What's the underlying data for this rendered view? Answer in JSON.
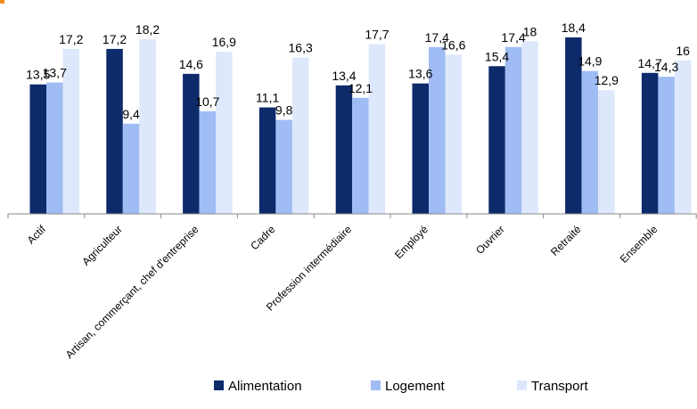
{
  "chart_data": {
    "type": "bar",
    "categories": [
      "Actif",
      "Agriculteur",
      "Artisan, commerçant, chef d'entreprise",
      "Cadre",
      "Profession intermédiaire",
      "Employé",
      "Ouvrier",
      "Retraité",
      "Ensemble"
    ],
    "series": [
      {
        "name": "Alimentation",
        "color": "#0d2a6b",
        "values": [
          13.5,
          17.2,
          14.6,
          11.1,
          13.4,
          13.6,
          15.4,
          18.4,
          14.7
        ],
        "labels": [
          "13,5",
          "17,2",
          "14,6",
          "11,1",
          "13,4",
          "13,6",
          "15,4",
          "18,4",
          "14,7"
        ]
      },
      {
        "name": "Logement",
        "color": "#9fbcf5",
        "values": [
          13.7,
          9.4,
          10.7,
          9.8,
          12.1,
          17.4,
          17.4,
          14.9,
          14.3
        ],
        "labels": [
          "13,7",
          "9,4",
          "10,7",
          "9,8",
          "12,1",
          "17,4",
          "17,4",
          "14,9",
          "14,3"
        ]
      },
      {
        "name": "Transport",
        "color": "#dde8fc",
        "values": [
          17.2,
          18.2,
          16.9,
          16.3,
          17.7,
          16.6,
          18,
          12.9,
          16
        ],
        "labels": [
          "17,2",
          "18,2",
          "16,9",
          "16,3",
          "17,7",
          "16,6",
          "18",
          "12,9",
          "16"
        ]
      }
    ],
    "ylim": [
      0,
      18.4
    ],
    "legend_position": "bottom",
    "grid": false,
    "accent_color": "#f28c1e"
  }
}
